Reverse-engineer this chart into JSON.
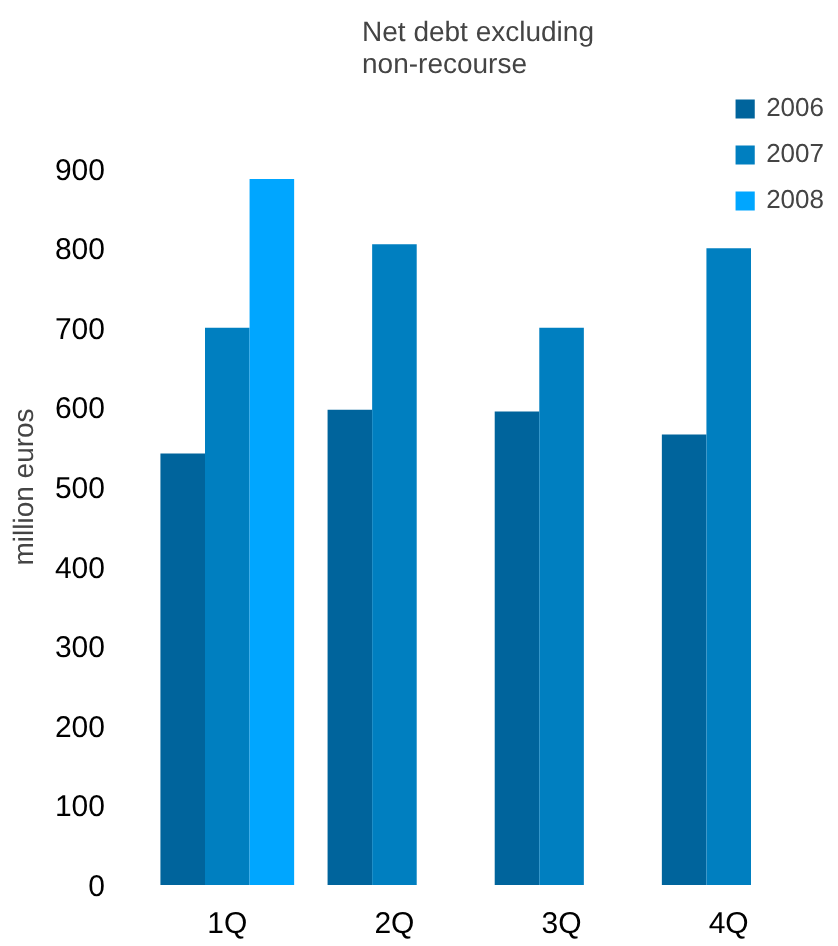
{
  "chart_data": {
    "type": "bar",
    "title": "Net debt excluding\nnon-recourse",
    "ylabel": "million euros",
    "categories": [
      "1Q",
      "2Q",
      "3Q",
      "4Q"
    ],
    "series": [
      {
        "name": "2006",
        "color": "#00649c",
        "values": [
          542,
          597,
          595,
          566
        ]
      },
      {
        "name": "2007",
        "color": "#007fc0",
        "values": [
          700,
          805,
          700,
          800
        ]
      },
      {
        "name": "2008",
        "color": "#00a6ff",
        "values": [
          887,
          null,
          null,
          null
        ]
      }
    ],
    "ylim": [
      0,
      1000
    ],
    "yticks": [
      0,
      100,
      200,
      300,
      400,
      500,
      600,
      700,
      800,
      900
    ],
    "grid": false,
    "legend": "top right"
  }
}
